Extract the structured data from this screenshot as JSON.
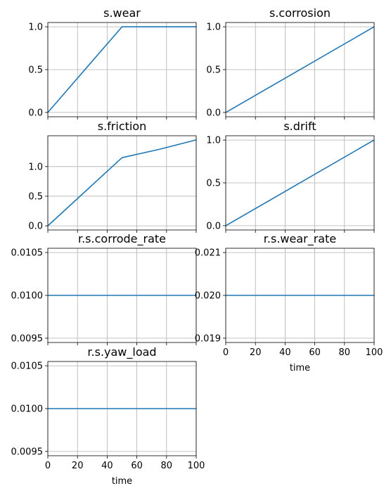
{
  "chart_data": [
    {
      "type": "line",
      "title": "s.wear",
      "xlabel": "",
      "x": [
        0,
        50,
        100
      ],
      "series": [
        {
          "values": [
            0,
            1,
            1
          ]
        }
      ],
      "xlim": [
        0,
        100
      ],
      "ylim": [
        -0.05,
        1.05
      ],
      "yticks": [
        0.0,
        0.5,
        1.0
      ],
      "ytick_labels": [
        "0.0",
        "0.5",
        "1.0"
      ],
      "xticks": [
        0,
        20,
        40,
        60,
        80,
        100
      ],
      "xtick_labels": [],
      "grid": true,
      "color": "#1f77b4"
    },
    {
      "type": "line",
      "title": "s.corrosion",
      "xlabel": "",
      "x": [
        0,
        100
      ],
      "series": [
        {
          "values": [
            0,
            1
          ]
        }
      ],
      "xlim": [
        0,
        100
      ],
      "ylim": [
        -0.05,
        1.05
      ],
      "yticks": [
        0.0,
        0.5,
        1.0
      ],
      "ytick_labels": [
        "0.0",
        "0.5",
        "1.0"
      ],
      "xticks": [
        0,
        20,
        40,
        60,
        80,
        100
      ],
      "xtick_labels": [],
      "grid": true,
      "color": "#1f77b4"
    },
    {
      "type": "line",
      "title": "s.friction",
      "xlabel": "",
      "x": [
        0,
        50,
        75,
        100
      ],
      "series": [
        {
          "values": [
            0,
            1.15,
            1.29,
            1.45
          ]
        }
      ],
      "xlim": [
        0,
        100
      ],
      "ylim": [
        -0.07,
        1.52
      ],
      "yticks": [
        0.0,
        0.5,
        1.0
      ],
      "ytick_labels": [
        "0.0",
        "0.5",
        "1.0"
      ],
      "xticks": [
        0,
        20,
        40,
        60,
        80,
        100
      ],
      "xtick_labels": [],
      "grid": true,
      "color": "#1f77b4"
    },
    {
      "type": "line",
      "title": "s.drift",
      "xlabel": "",
      "x": [
        0,
        100
      ],
      "series": [
        {
          "values": [
            0,
            1
          ]
        }
      ],
      "xlim": [
        0,
        100
      ],
      "ylim": [
        -0.05,
        1.05
      ],
      "yticks": [
        0.0,
        0.5,
        1.0
      ],
      "ytick_labels": [
        "0.0",
        "0.5",
        "1.0"
      ],
      "xticks": [
        0,
        20,
        40,
        60,
        80,
        100
      ],
      "xtick_labels": [],
      "grid": true,
      "color": "#1f77b4"
    },
    {
      "type": "line",
      "title": "r.s.corrode_rate",
      "xlabel": "",
      "x": [
        0,
        100
      ],
      "series": [
        {
          "values": [
            0.01,
            0.01
          ]
        }
      ],
      "xlim": [
        0,
        100
      ],
      "ylim": [
        0.00945,
        0.01055
      ],
      "yticks": [
        0.0095,
        0.01,
        0.0105
      ],
      "ytick_labels": [
        "0.0095",
        "0.0100",
        "0.0105"
      ],
      "xticks": [
        0,
        20,
        40,
        60,
        80,
        100
      ],
      "xtick_labels": [],
      "grid": true,
      "color": "#1f77b4"
    },
    {
      "type": "line",
      "title": "r.s.wear_rate",
      "xlabel": "time",
      "x": [
        0,
        100
      ],
      "series": [
        {
          "values": [
            0.02,
            0.02
          ]
        }
      ],
      "xlim": [
        0,
        100
      ],
      "ylim": [
        0.0189,
        0.0211
      ],
      "yticks": [
        0.019,
        0.02,
        0.021
      ],
      "ytick_labels": [
        "0.019",
        "0.020",
        "0.021"
      ],
      "xticks": [
        0,
        20,
        40,
        60,
        80,
        100
      ],
      "xtick_labels": [
        "0",
        "20",
        "40",
        "60",
        "80",
        "100"
      ],
      "grid": true,
      "color": "#1f77b4"
    },
    {
      "type": "line",
      "title": "r.s.yaw_load",
      "xlabel": "time",
      "x": [
        0,
        100
      ],
      "series": [
        {
          "values": [
            0.01,
            0.01
          ]
        }
      ],
      "xlim": [
        0,
        100
      ],
      "ylim": [
        0.00945,
        0.01055
      ],
      "yticks": [
        0.0095,
        0.01,
        0.0105
      ],
      "ytick_labels": [
        "0.0095",
        "0.0100",
        "0.0105"
      ],
      "xticks": [
        0,
        20,
        40,
        60,
        80,
        100
      ],
      "xtick_labels": [
        "0",
        "20",
        "40",
        "60",
        "80",
        "100"
      ],
      "grid": true,
      "color": "#1f77b4"
    }
  ]
}
